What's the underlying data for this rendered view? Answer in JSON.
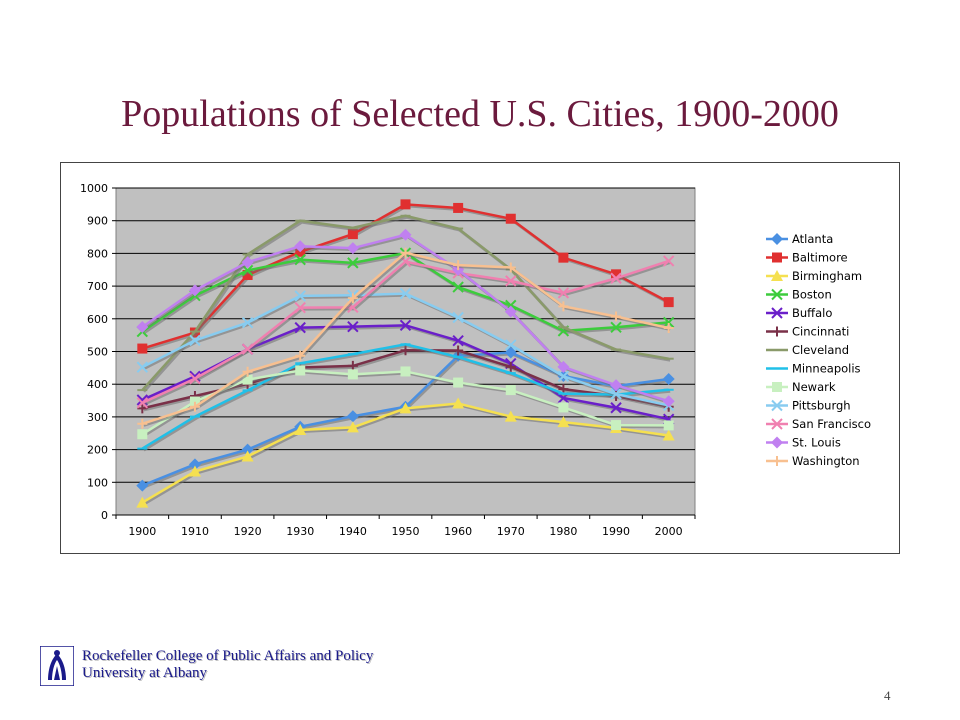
{
  "slide": {
    "title": "Populations of Selected U.S. Cities, 1900-2000",
    "footer_line1": "Rockefeller College of Public Affairs and Policy",
    "footer_line2": "University at Albany",
    "page_number": "4",
    "title_color": "#6b1a3d",
    "footer_color": "#1a1a8a",
    "logo_icon": "rockefeller-college-logo"
  },
  "chart_data": {
    "type": "line",
    "title": "",
    "xlabel": "",
    "ylabel": "",
    "categories": [
      "1900",
      "1910",
      "1920",
      "1930",
      "1940",
      "1950",
      "1960",
      "1970",
      "1980",
      "1990",
      "2000"
    ],
    "ylim": [
      0,
      1000
    ],
    "yticks": [
      0,
      100,
      200,
      300,
      400,
      500,
      600,
      700,
      800,
      900,
      1000
    ],
    "grid": true,
    "plot_background": "#c0c0c0",
    "legend_position": "right",
    "series": [
      {
        "name": "Atlanta",
        "color": "#4a90e2",
        "marker": "diamond",
        "values": [
          90,
          155,
          200,
          270,
          302,
          331,
          487,
          497,
          425,
          394,
          416
        ]
      },
      {
        "name": "Baltimore",
        "color": "#e03030",
        "marker": "square",
        "values": [
          509,
          558,
          734,
          805,
          859,
          950,
          939,
          906,
          787,
          736,
          651
        ]
      },
      {
        "name": "Birmingham",
        "color": "#f5e050",
        "marker": "triangle",
        "values": [
          38,
          133,
          179,
          260,
          268,
          326,
          341,
          301,
          284,
          266,
          243
        ]
      },
      {
        "name": "Boston",
        "color": "#3ccc3c",
        "marker": "x",
        "values": [
          561,
          671,
          748,
          781,
          771,
          801,
          697,
          641,
          563,
          574,
          589
        ]
      },
      {
        "name": "Buffalo",
        "color": "#6a1fc9",
        "marker": "x",
        "values": [
          352,
          424,
          507,
          573,
          576,
          580,
          533,
          463,
          358,
          328,
          293
        ]
      },
      {
        "name": "Cincinnati",
        "color": "#7a3048",
        "marker": "plus",
        "values": [
          326,
          364,
          401,
          451,
          456,
          504,
          503,
          453,
          385,
          364,
          331
        ]
      },
      {
        "name": "Cleveland",
        "color": "#8a9a6a",
        "marker": "dash",
        "values": [
          382,
          561,
          797,
          900,
          878,
          915,
          876,
          751,
          574,
          506,
          478
        ]
      },
      {
        "name": "Minneapolis",
        "color": "#20c0e8",
        "marker": "dash",
        "values": [
          203,
          301,
          381,
          464,
          492,
          522,
          483,
          434,
          371,
          368,
          383
        ]
      },
      {
        "name": "Newark",
        "color": "#c8f0c0",
        "marker": "square",
        "values": [
          247,
          347,
          414,
          442,
          430,
          439,
          405,
          382,
          329,
          275,
          274
        ]
      },
      {
        "name": "Pittsburgh",
        "color": "#88ccf0",
        "marker": "x",
        "values": [
          452,
          534,
          588,
          670,
          672,
          677,
          604,
          520,
          424,
          370,
          335
        ]
      },
      {
        "name": "San Francisco",
        "color": "#f080b0",
        "marker": "x",
        "values": [
          343,
          417,
          507,
          634,
          635,
          775,
          740,
          716,
          679,
          724,
          777
        ]
      },
      {
        "name": "St. Louis",
        "color": "#c080f0",
        "marker": "diamond",
        "values": [
          575,
          687,
          773,
          822,
          816,
          857,
          750,
          622,
          453,
          397,
          348
        ]
      },
      {
        "name": "Washington",
        "color": "#f8c090",
        "marker": "plus",
        "values": [
          279,
          331,
          438,
          487,
          663,
          802,
          764,
          757,
          638,
          607,
          572
        ]
      }
    ]
  }
}
